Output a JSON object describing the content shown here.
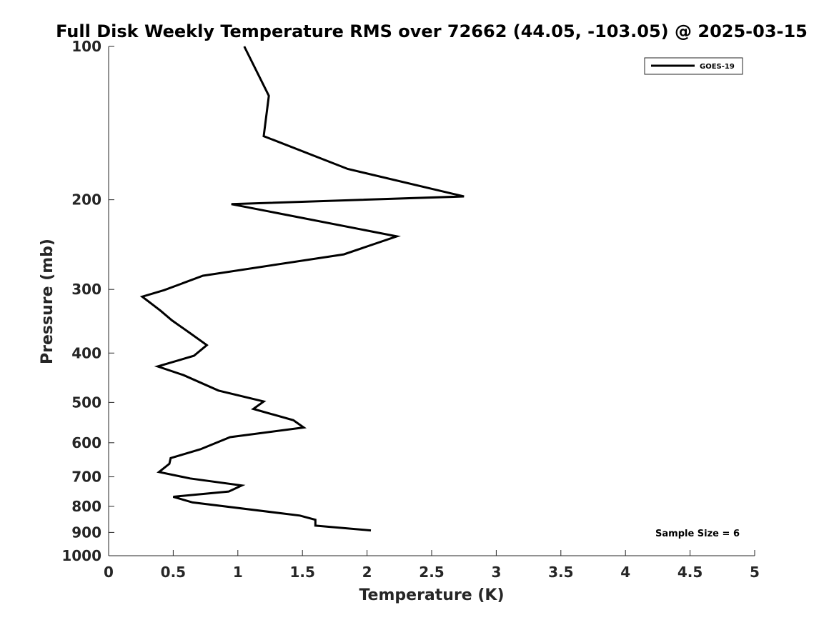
{
  "chart_data": {
    "type": "line",
    "title": "Full Disk Weekly Temperature RMS over 72662 (44.05, -103.05) @ 2025-03-15",
    "xlabel": "Temperature (K)",
    "ylabel": "Pressure (mb)",
    "xlim": [
      0,
      5
    ],
    "ylim": [
      100,
      1000
    ],
    "yscale": "log",
    "y_reversed": true,
    "grid": false,
    "legend_position": "top-right",
    "xticks": [
      0,
      0.5,
      1,
      1.5,
      2,
      2.5,
      3,
      3.5,
      4,
      4.5,
      5
    ],
    "xtick_labels": [
      "0",
      "0.5",
      "1",
      "1.5",
      "2",
      "2.5",
      "3",
      "3.5",
      "4",
      "4.5",
      "5"
    ],
    "yticks": [
      100,
      200,
      300,
      400,
      500,
      600,
      700,
      800,
      900,
      1000
    ],
    "ytick_labels": [
      "100",
      "200",
      "300",
      "400",
      "500",
      "600",
      "700",
      "800",
      "900",
      "1000"
    ],
    "series": [
      {
        "name": "GOES-19",
        "color": "#000000",
        "x": [
          1.05,
          1.24,
          1.2,
          1.85,
          2.75,
          0.95,
          2.23,
          1.82,
          0.73,
          0.43,
          0.26,
          0.4,
          0.49,
          0.64,
          0.76,
          0.66,
          0.38,
          0.58,
          0.85,
          1.2,
          1.12,
          1.43,
          1.51,
          0.94,
          0.71,
          0.48,
          0.47,
          0.39,
          0.63,
          1.03,
          0.93,
          0.5,
          0.65,
          1.48,
          1.6,
          1.6,
          2.03
        ],
        "y": [
          100,
          125,
          150,
          174,
          197,
          204,
          236,
          256,
          282,
          301,
          310,
          330,
          345,
          367,
          386,
          405,
          425,
          442,
          474,
          498,
          515,
          542,
          560,
          585,
          618,
          643,
          660,
          685,
          705,
          728,
          748,
          766,
          786,
          834,
          850,
          873,
          892
        ]
      }
    ],
    "annotations": [
      {
        "text": "Sample Size = 6",
        "position": "bottom-right"
      }
    ]
  }
}
